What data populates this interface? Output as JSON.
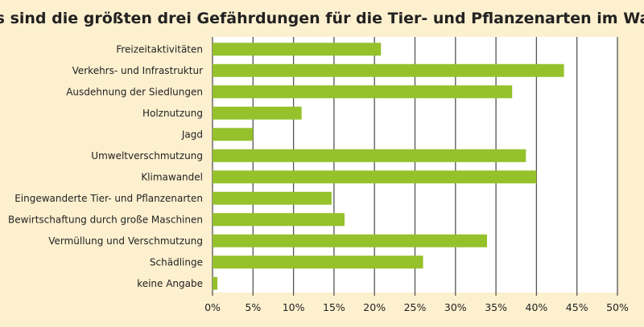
{
  "chart_data": {
    "type": "bar",
    "orientation": "horizontal",
    "title": "Was sind die größten drei Gefährdungen für die Tier- und Pflanzenarten im Wald?",
    "xlabel": "",
    "ylabel": "",
    "categories": [
      "Freizeitaktivitäten",
      "Verkehrs- und Infrastruktur",
      "Ausdehnung der Siedlungen",
      "Holznutzung",
      "Jagd",
      "Umweltverschmutzung",
      "Klimawandel",
      "Eingewanderte Tier- und Pflanzenarten",
      "Bewirtschaftung durch große Maschinen",
      "Vermüllung und Verschmutzung",
      "Schädlinge",
      "keine Angabe"
    ],
    "values": [
      20.8,
      43.4,
      37.0,
      11.0,
      5.0,
      38.7,
      40.0,
      14.7,
      16.3,
      33.9,
      26.0,
      0.6
    ],
    "xlim": [
      0,
      50
    ],
    "xticks": [
      0,
      5,
      10,
      15,
      20,
      25,
      30,
      35,
      40,
      45,
      50
    ],
    "xtick_labels": [
      "0%",
      "5%",
      "10%",
      "15%",
      "20%",
      "25%",
      "30%",
      "35%",
      "40%",
      "45%",
      "50%"
    ],
    "grid": true,
    "colors": {
      "bar": "#95c12b",
      "background": "#fdf0cf",
      "plot": "#ffffff",
      "grid": "#555555"
    }
  }
}
